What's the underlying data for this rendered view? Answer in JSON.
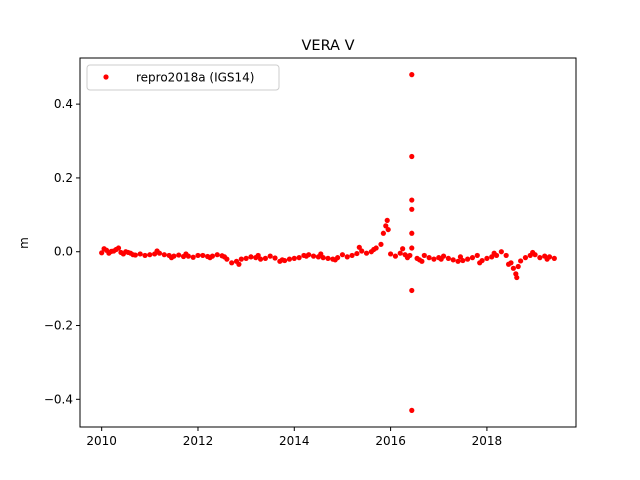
{
  "chart_data": {
    "type": "scatter",
    "title": "VERA V",
    "xlabel": "",
    "ylabel": "m",
    "xlim": [
      2009.55,
      2019.85
    ],
    "ylim": [
      -0.475,
      0.525
    ],
    "xticks": [
      2010,
      2012,
      2014,
      2016,
      2018
    ],
    "xtick_labels": [
      "2010",
      "2012",
      "2014",
      "2016",
      "2018"
    ],
    "yticks": [
      -0.4,
      -0.2,
      0.0,
      0.2,
      0.4
    ],
    "ytick_labels": [
      "−0.4",
      "−0.2",
      "0.0",
      "0.2",
      "0.4"
    ],
    "grid": false,
    "legend_position": "top-left",
    "series": [
      {
        "name": "repro2018a (IGS14)",
        "color": "#ff0000",
        "marker": "circle",
        "x": [
          2010.0,
          2010.1,
          2010.2,
          2010.3,
          2010.4,
          2010.5,
          2010.6,
          2010.7,
          2010.8,
          2010.9,
          2011.0,
          2011.1,
          2011.2,
          2011.3,
          2011.4,
          2011.5,
          2011.6,
          2011.7,
          2011.8,
          2011.9,
          2012.0,
          2012.1,
          2012.2,
          2012.3,
          2012.4,
          2012.5,
          2012.6,
          2012.7,
          2012.8,
          2012.9,
          2013.0,
          2013.1,
          2013.2,
          2013.3,
          2013.4,
          2013.5,
          2013.6,
          2013.7,
          2013.8,
          2013.9,
          2014.0,
          2014.1,
          2014.2,
          2014.3,
          2014.4,
          2014.5,
          2014.6,
          2014.7,
          2014.8,
          2014.9,
          2015.0,
          2015.1,
          2015.2,
          2015.3,
          2015.4,
          2015.5,
          2015.6,
          2015.7,
          2015.8,
          2015.85,
          2015.9,
          2015.93,
          2015.95,
          2016.0,
          2016.1,
          2016.2,
          2016.3,
          2016.4,
          2016.44,
          2016.44,
          2016.44,
          2016.44,
          2016.44,
          2016.44,
          2016.44,
          2016.44,
          2016.55,
          2016.6,
          2016.7,
          2016.8,
          2016.9,
          2017.0,
          2017.1,
          2017.2,
          2017.3,
          2017.4,
          2017.5,
          2017.6,
          2017.7,
          2017.8,
          2017.9,
          2018.0,
          2018.1,
          2018.2,
          2018.3,
          2018.4,
          2018.5,
          2018.55,
          2018.6,
          2018.62,
          2018.65,
          2018.7,
          2018.8,
          2018.9,
          2019.0,
          2019.1,
          2019.2,
          2019.3,
          2019.4,
          2010.05,
          2010.15,
          2010.25,
          2010.35,
          2010.45,
          2010.55,
          2010.65,
          2011.15,
          2011.45,
          2011.75,
          2012.25,
          2012.55,
          2012.85,
          2013.25,
          2013.75,
          2014.25,
          2014.55,
          2014.85,
          2015.35,
          2015.65,
          2016.25,
          2016.35,
          2016.65,
          2017.05,
          2017.45,
          2017.85,
          2018.15,
          2018.45,
          2018.95,
          2019.25
        ],
        "y": [
          -0.003,
          0.004,
          0.001,
          0.006,
          -0.002,
          0.0,
          -0.004,
          -0.009,
          -0.006,
          -0.01,
          -0.008,
          -0.006,
          -0.004,
          -0.008,
          -0.01,
          -0.012,
          -0.009,
          -0.013,
          -0.012,
          -0.015,
          -0.01,
          -0.01,
          -0.013,
          -0.012,
          -0.008,
          -0.011,
          -0.02,
          -0.03,
          -0.026,
          -0.02,
          -0.018,
          -0.014,
          -0.016,
          -0.02,
          -0.018,
          -0.012,
          -0.017,
          -0.026,
          -0.024,
          -0.02,
          -0.018,
          -0.016,
          -0.01,
          -0.008,
          -0.012,
          -0.014,
          -0.016,
          -0.018,
          -0.02,
          -0.016,
          -0.008,
          -0.014,
          -0.01,
          -0.005,
          0.002,
          -0.004,
          0.0,
          0.01,
          0.02,
          0.05,
          0.07,
          0.085,
          0.06,
          -0.006,
          -0.012,
          -0.004,
          -0.008,
          -0.01,
          0.48,
          0.258,
          0.14,
          0.115,
          0.05,
          0.01,
          -0.105,
          -0.43,
          -0.018,
          -0.022,
          -0.01,
          -0.016,
          -0.02,
          -0.016,
          -0.012,
          -0.018,
          -0.022,
          -0.026,
          -0.024,
          -0.02,
          -0.016,
          -0.01,
          -0.024,
          -0.018,
          -0.014,
          -0.01,
          0.0,
          -0.01,
          -0.03,
          -0.045,
          -0.06,
          -0.07,
          -0.04,
          -0.025,
          -0.016,
          -0.01,
          -0.008,
          -0.016,
          -0.012,
          -0.014,
          -0.018,
          0.008,
          -0.004,
          0.002,
          0.01,
          -0.006,
          -0.002,
          -0.008,
          0.002,
          -0.016,
          -0.006,
          -0.016,
          -0.014,
          -0.034,
          -0.01,
          -0.022,
          -0.012,
          -0.006,
          -0.022,
          0.012,
          0.006,
          0.008,
          -0.016,
          -0.026,
          -0.02,
          -0.014,
          -0.03,
          -0.004,
          -0.034,
          -0.002,
          -0.02
        ]
      }
    ]
  }
}
